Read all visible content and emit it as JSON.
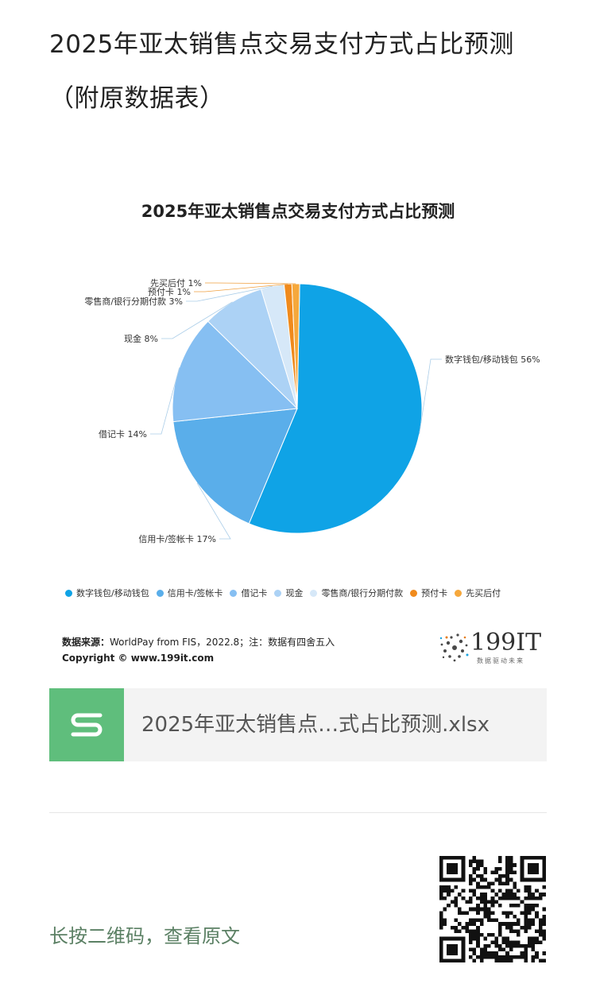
{
  "article": {
    "title": "2025年亚太销售点交易支付方式占比预测（附原数据表）"
  },
  "chart_data": {
    "type": "pie",
    "title": "2025年亚太销售点交易支付方式占比预测",
    "categories": [
      "数字钱包/移动钱包",
      "信用卡/签帐卡",
      "借记卡",
      "现金",
      "零售商/银行分期付款",
      "预付卡",
      "先买后付"
    ],
    "values": [
      56,
      17,
      14,
      8,
      3,
      1,
      1
    ],
    "labels": [
      "数字钱包/移动钱包 56%",
      "信用卡/签帐卡 17%",
      "借记卡 14%",
      "现金 8%",
      "零售商/银行分期付款 3%",
      "预付卡 1%",
      "先买后付 1%"
    ],
    "colors": [
      "#0fa3e6",
      "#5aaeea",
      "#86bff2",
      "#acd2f5",
      "#d6e8f8",
      "#f08a1c",
      "#f6a83c"
    ],
    "legend_position": "bottom"
  },
  "source": {
    "label": "数据来源：",
    "text": "WorldPay from FIS，2022.8；注：数据有四舍五入",
    "copyright": "Copyright © www.199it.com"
  },
  "logo": {
    "name": "199IT",
    "tagline": "数据驱动未来"
  },
  "attachment": {
    "icon": "spreadsheet-s-icon",
    "file_name": "2025年亚太销售点…式占比预测.xlsx"
  },
  "footer": {
    "qr_hint": "长按二维码，查看原文"
  }
}
